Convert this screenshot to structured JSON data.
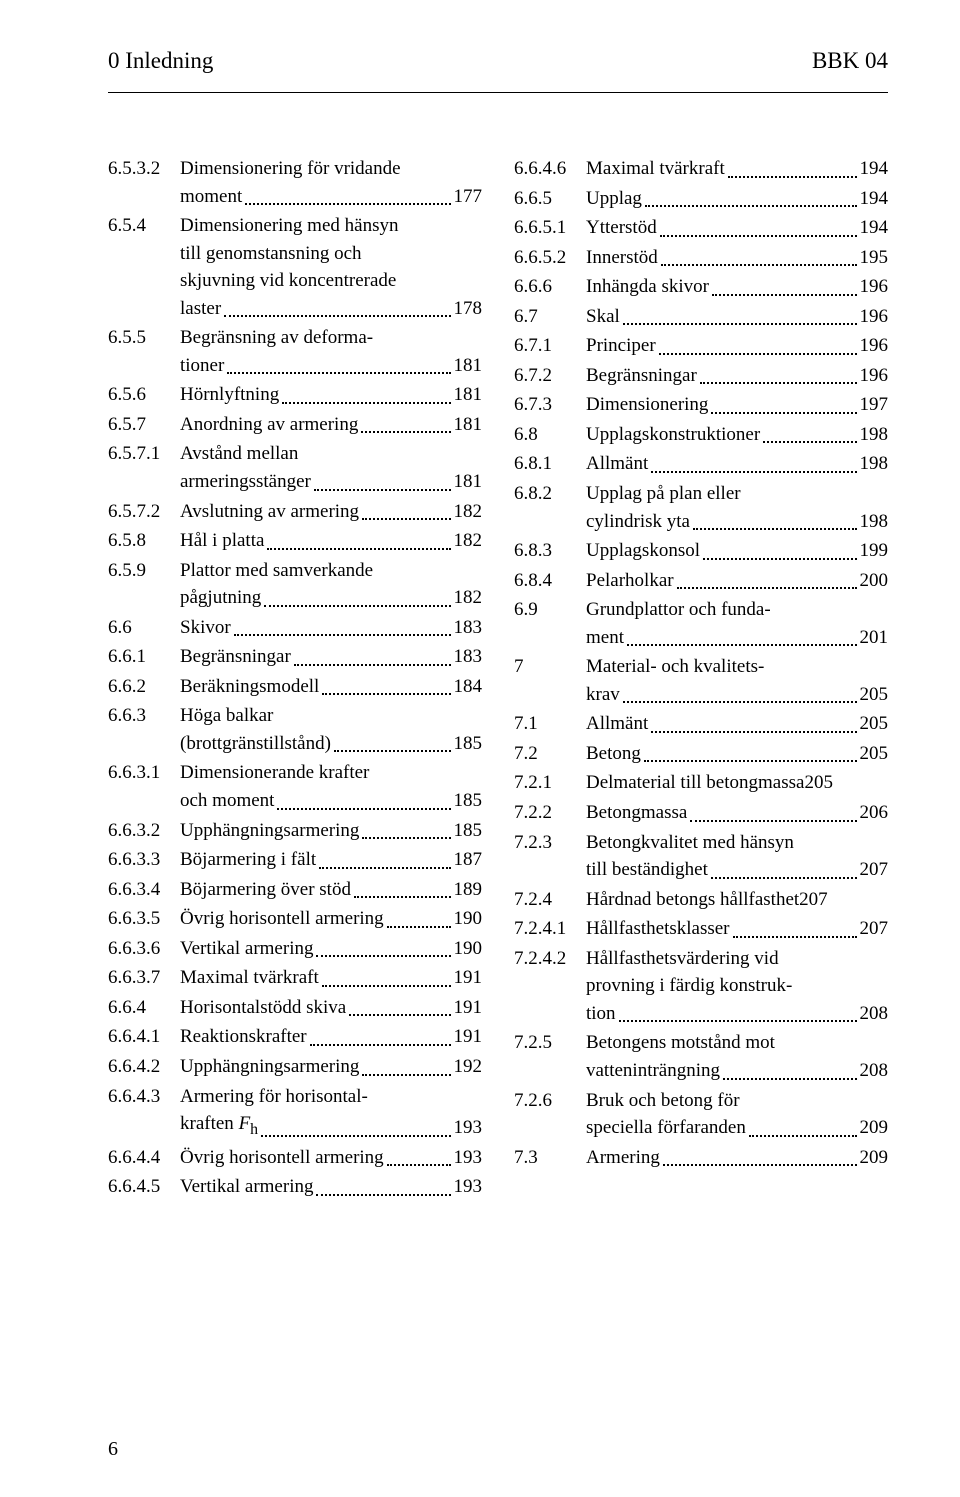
{
  "header": {
    "left": "0 Inledning",
    "right": "BBK 04"
  },
  "page_number": "6",
  "col_left": [
    {
      "num": "6.5.3.2",
      "lines": [
        "Dimensionering för vridande",
        "moment"
      ],
      "page": "177"
    },
    {
      "num": "6.5.4",
      "lines": [
        "Dimensionering med hänsyn",
        "till genomstansning och",
        "skjuvning vid koncentrerade",
        "laster"
      ],
      "page": "178"
    },
    {
      "num": "6.5.5",
      "lines": [
        "Begränsning av deforma-",
        "tioner"
      ],
      "page": "181"
    },
    {
      "num": "6.5.6",
      "lines": [
        "Hörnlyftning"
      ],
      "page": "181"
    },
    {
      "num": "6.5.7",
      "lines": [
        "Anordning av armering"
      ],
      "page": "181"
    },
    {
      "num": "6.5.7.1",
      "lines": [
        "Avstånd mellan",
        "armeringsstänger"
      ],
      "page": "181"
    },
    {
      "num": "6.5.7.2",
      "lines": [
        "Avslutning av armering"
      ],
      "page": "182"
    },
    {
      "num": "6.5.8",
      "lines": [
        "Hål i platta"
      ],
      "page": "182"
    },
    {
      "num": "6.5.9",
      "lines": [
        "Plattor med samverkande",
        "pågjutning"
      ],
      "page": "182"
    },
    {
      "num": "6.6",
      "lines": [
        "Skivor"
      ],
      "page": "183"
    },
    {
      "num": "6.6.1",
      "lines": [
        "Begränsningar"
      ],
      "page": "183"
    },
    {
      "num": "6.6.2",
      "lines": [
        "Beräkningsmodell"
      ],
      "page": "184"
    },
    {
      "num": "6.6.3",
      "lines": [
        "Höga balkar",
        "(brottgränstillstånd)"
      ],
      "page": "185"
    },
    {
      "num": "6.6.3.1",
      "lines": [
        "Dimensionerande krafter",
        "och moment"
      ],
      "page": "185"
    },
    {
      "num": "6.6.3.2",
      "lines": [
        "Upphängningsarmering"
      ],
      "page": "185"
    },
    {
      "num": "6.6.3.3",
      "lines": [
        "Böjarmering i fält"
      ],
      "page": "187"
    },
    {
      "num": "6.6.3.4",
      "lines": [
        "Böjarmering över stöd"
      ],
      "page": "189"
    },
    {
      "num": "6.6.3.5",
      "lines": [
        "Övrig horisontell armering"
      ],
      "page": "190"
    },
    {
      "num": "6.6.3.6",
      "lines": [
        "Vertikal armering"
      ],
      "page": "190"
    },
    {
      "num": "6.6.3.7",
      "lines": [
        "Maximal tvärkraft"
      ],
      "page": "191"
    },
    {
      "num": "6.6.4",
      "lines": [
        "Horisontalstödd skiva"
      ],
      "page": "191"
    },
    {
      "num": "6.6.4.1",
      "lines": [
        "Reaktionskrafter"
      ],
      "page": "191"
    },
    {
      "num": "6.6.4.2",
      "lines": [
        "Upphängningsarmering"
      ],
      "page": "192"
    },
    {
      "num": "6.6.4.3",
      "lines": [
        "Armering för horisontal-",
        "kraften <span class=\"italic\">F</span><sub>h</sub>"
      ],
      "page": "193"
    },
    {
      "num": "6.6.4.4",
      "lines": [
        "Övrig horisontell armering"
      ],
      "page": "193"
    },
    {
      "num": "6.6.4.5",
      "lines": [
        "Vertikal armering"
      ],
      "page": "193"
    }
  ],
  "col_right": [
    {
      "num": "6.6.4.6",
      "lines": [
        "Maximal tvärkraft"
      ],
      "page": "194"
    },
    {
      "num": "6.6.5",
      "lines": [
        "Upplag"
      ],
      "page": "194"
    },
    {
      "num": "6.6.5.1",
      "lines": [
        "Ytterstöd"
      ],
      "page": "194"
    },
    {
      "num": "6.6.5.2",
      "lines": [
        "Innerstöd"
      ],
      "page": "195"
    },
    {
      "num": "6.6.6",
      "lines": [
        "Inhängda skivor"
      ],
      "page": "196"
    },
    {
      "num": "6.7",
      "lines": [
        "Skal"
      ],
      "page": "196"
    },
    {
      "num": "6.7.1",
      "lines": [
        "Principer"
      ],
      "page": "196"
    },
    {
      "num": "6.7.2",
      "lines": [
        "Begränsningar"
      ],
      "page": "196"
    },
    {
      "num": "6.7.3",
      "lines": [
        "Dimensionering"
      ],
      "page": "197"
    },
    {
      "num": "6.8",
      "lines": [
        "Upplagskonstruktioner"
      ],
      "page": "198"
    },
    {
      "num": "6.8.1",
      "lines": [
        "Allmänt"
      ],
      "page": "198"
    },
    {
      "num": "6.8.2",
      "lines": [
        "Upplag på plan eller",
        "cylindrisk yta"
      ],
      "page": "198"
    },
    {
      "num": "6.8.3",
      "lines": [
        "Upplagskonsol"
      ],
      "page": "199"
    },
    {
      "num": "6.8.4",
      "lines": [
        "Pelarholkar"
      ],
      "page": "200"
    },
    {
      "num": "6.9",
      "lines": [
        "Grundplattor och funda-",
        "ment"
      ],
      "page": "201"
    },
    {
      "num": "7",
      "lines": [
        "Material- och kvalitets-",
        "krav"
      ],
      "page": "205"
    },
    {
      "num": "7.1",
      "lines": [
        "Allmänt"
      ],
      "page": "205"
    },
    {
      "num": "7.2",
      "lines": [
        "Betong"
      ],
      "page": "205"
    },
    {
      "num": "7.2.1",
      "lines": [
        "Delmaterial till betongmassa"
      ],
      "page": "205",
      "nodots": true
    },
    {
      "num": "7.2.2",
      "lines": [
        "Betongmassa"
      ],
      "page": "206"
    },
    {
      "num": "7.2.3",
      "lines": [
        "Betongkvalitet med hänsyn",
        "till beständighet"
      ],
      "page": "207"
    },
    {
      "num": "7.2.4",
      "lines": [
        "Hårdnad betongs hållfasthet"
      ],
      "page": "207",
      "nodots": true
    },
    {
      "num": "7.2.4.1",
      "lines": [
        "Hållfasthetsklasser"
      ],
      "page": "207"
    },
    {
      "num": "7.2.4.2",
      "lines": [
        "Hållfasthetsvärdering vid",
        "provning i färdig konstruk-",
        "tion"
      ],
      "page": "208"
    },
    {
      "num": "7.2.5",
      "lines": [
        "Betongens motstånd mot",
        "vatteninträngning"
      ],
      "page": "208"
    },
    {
      "num": "7.2.6",
      "lines": [
        "Bruk och betong för",
        "speciella förfaranden"
      ],
      "page": "209"
    },
    {
      "num": "7.3",
      "lines": [
        "Armering"
      ],
      "page": "209"
    }
  ]
}
